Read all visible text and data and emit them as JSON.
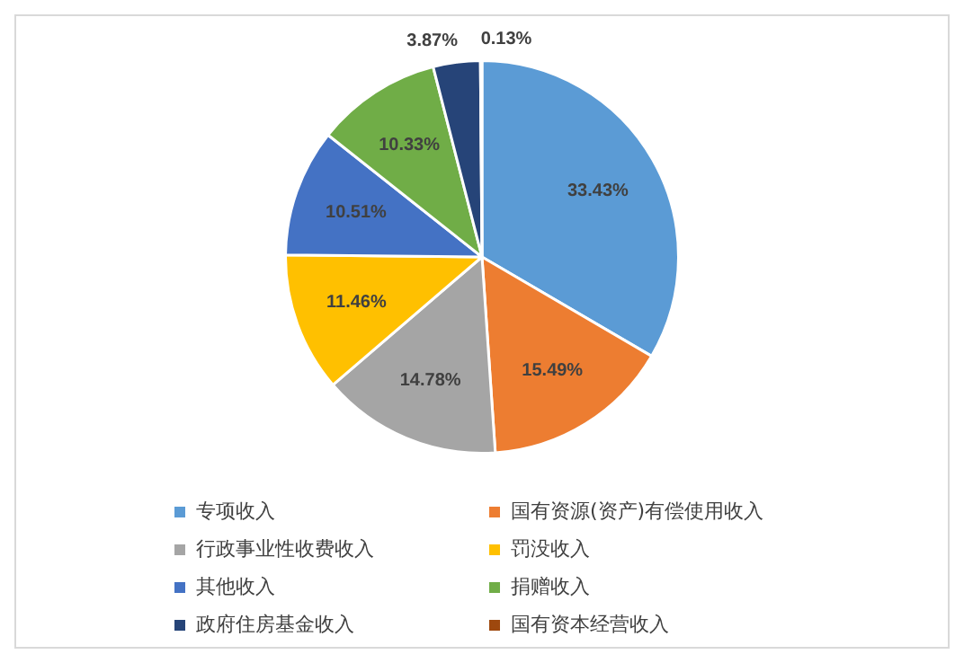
{
  "chart_data": {
    "type": "pie",
    "categories": [
      "专项收入",
      "国有资源(资产)有偿使用收入",
      "行政事业性收费收入",
      "罚没收入",
      "其他收入",
      "捐赠收入",
      "政府住房基金收入",
      "国有资本经营收入"
    ],
    "values": [
      33.43,
      15.49,
      14.78,
      11.46,
      10.51,
      10.33,
      3.87,
      0.13
    ],
    "value_labels": [
      "33.43%",
      "15.49%",
      "14.78%",
      "11.46%",
      "10.51%",
      "10.33%",
      "3.87%",
      "0.13%"
    ],
    "colors": [
      "#5b9bd5",
      "#ed7d31",
      "#a5a5a5",
      "#ffc000",
      "#4472c4",
      "#70ad47",
      "#264478",
      "#9e480e"
    ],
    "legend": "bottom"
  }
}
